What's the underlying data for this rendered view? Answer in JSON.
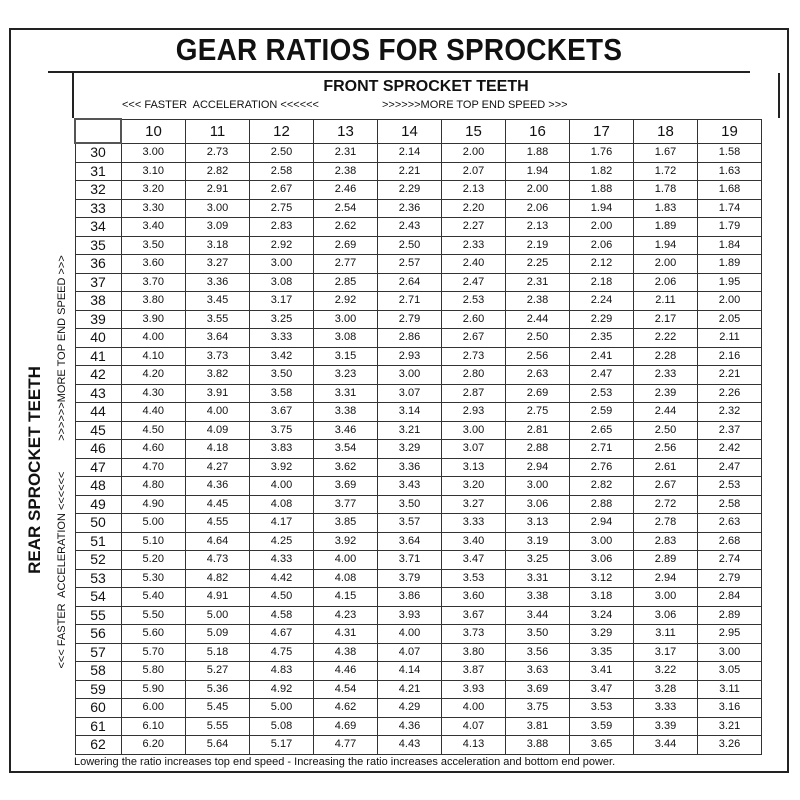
{
  "title": "GEAR RATIOS FOR SPROCKETS",
  "front_header": {
    "title": "FRONT SPROCKET TEETH",
    "left": "<<< FASTER  ACCELERATION <<<<<<",
    "right": ">>>>>>MORE TOP END SPEED >>>"
  },
  "rear_header": {
    "title": "REAR SPROCKET TEETH",
    "left": "<<< FASTER  ACCELERATION <<<<<<",
    "right": ">>>>>>MORE TOP END SPEED >>>"
  },
  "table": {
    "columns": [
      "10",
      "11",
      "12",
      "13",
      "14",
      "15",
      "16",
      "17",
      "18",
      "19"
    ],
    "rows": [
      {
        "label": "30",
        "values": [
          "3.00",
          "2.73",
          "2.50",
          "2.31",
          "2.14",
          "2.00",
          "1.88",
          "1.76",
          "1.67",
          "1.58"
        ]
      },
      {
        "label": "31",
        "values": [
          "3.10",
          "2.82",
          "2.58",
          "2.38",
          "2.21",
          "2.07",
          "1.94",
          "1.82",
          "1.72",
          "1.63"
        ]
      },
      {
        "label": "32",
        "values": [
          "3.20",
          "2.91",
          "2.67",
          "2.46",
          "2.29",
          "2.13",
          "2.00",
          "1.88",
          "1.78",
          "1.68"
        ]
      },
      {
        "label": "33",
        "values": [
          "3.30",
          "3.00",
          "2.75",
          "2.54",
          "2.36",
          "2.20",
          "2.06",
          "1.94",
          "1.83",
          "1.74"
        ]
      },
      {
        "label": "34",
        "values": [
          "3.40",
          "3.09",
          "2.83",
          "2.62",
          "2.43",
          "2.27",
          "2.13",
          "2.00",
          "1.89",
          "1.79"
        ]
      },
      {
        "label": "35",
        "values": [
          "3.50",
          "3.18",
          "2.92",
          "2.69",
          "2.50",
          "2.33",
          "2.19",
          "2.06",
          "1.94",
          "1.84"
        ]
      },
      {
        "label": "36",
        "values": [
          "3.60",
          "3.27",
          "3.00",
          "2.77",
          "2.57",
          "2.40",
          "2.25",
          "2.12",
          "2.00",
          "1.89"
        ]
      },
      {
        "label": "37",
        "values": [
          "3.70",
          "3.36",
          "3.08",
          "2.85",
          "2.64",
          "2.47",
          "2.31",
          "2.18",
          "2.06",
          "1.95"
        ]
      },
      {
        "label": "38",
        "values": [
          "3.80",
          "3.45",
          "3.17",
          "2.92",
          "2.71",
          "2.53",
          "2.38",
          "2.24",
          "2.11",
          "2.00"
        ]
      },
      {
        "label": "39",
        "values": [
          "3.90",
          "3.55",
          "3.25",
          "3.00",
          "2.79",
          "2.60",
          "2.44",
          "2.29",
          "2.17",
          "2.05"
        ]
      },
      {
        "label": "40",
        "values": [
          "4.00",
          "3.64",
          "3.33",
          "3.08",
          "2.86",
          "2.67",
          "2.50",
          "2.35",
          "2.22",
          "2.11"
        ]
      },
      {
        "label": "41",
        "values": [
          "4.10",
          "3.73",
          "3.42",
          "3.15",
          "2.93",
          "2.73",
          "2.56",
          "2.41",
          "2.28",
          "2.16"
        ]
      },
      {
        "label": "42",
        "values": [
          "4.20",
          "3.82",
          "3.50",
          "3.23",
          "3.00",
          "2.80",
          "2.63",
          "2.47",
          "2.33",
          "2.21"
        ]
      },
      {
        "label": "43",
        "values": [
          "4.30",
          "3.91",
          "3.58",
          "3.31",
          "3.07",
          "2.87",
          "2.69",
          "2.53",
          "2.39",
          "2.26"
        ]
      },
      {
        "label": "44",
        "values": [
          "4.40",
          "4.00",
          "3.67",
          "3.38",
          "3.14",
          "2.93",
          "2.75",
          "2.59",
          "2.44",
          "2.32"
        ]
      },
      {
        "label": "45",
        "values": [
          "4.50",
          "4.09",
          "3.75",
          "3.46",
          "3.21",
          "3.00",
          "2.81",
          "2.65",
          "2.50",
          "2.37"
        ]
      },
      {
        "label": "46",
        "values": [
          "4.60",
          "4.18",
          "3.83",
          "3.54",
          "3.29",
          "3.07",
          "2.88",
          "2.71",
          "2.56",
          "2.42"
        ]
      },
      {
        "label": "47",
        "values": [
          "4.70",
          "4.27",
          "3.92",
          "3.62",
          "3.36",
          "3.13",
          "2.94",
          "2.76",
          "2.61",
          "2.47"
        ]
      },
      {
        "label": "48",
        "values": [
          "4.80",
          "4.36",
          "4.00",
          "3.69",
          "3.43",
          "3.20",
          "3.00",
          "2.82",
          "2.67",
          "2.53"
        ]
      },
      {
        "label": "49",
        "values": [
          "4.90",
          "4.45",
          "4.08",
          "3.77",
          "3.50",
          "3.27",
          "3.06",
          "2.88",
          "2.72",
          "2.58"
        ]
      },
      {
        "label": "50",
        "values": [
          "5.00",
          "4.55",
          "4.17",
          "3.85",
          "3.57",
          "3.33",
          "3.13",
          "2.94",
          "2.78",
          "2.63"
        ]
      },
      {
        "label": "51",
        "values": [
          "5.10",
          "4.64",
          "4.25",
          "3.92",
          "3.64",
          "3.40",
          "3.19",
          "3.00",
          "2.83",
          "2.68"
        ]
      },
      {
        "label": "52",
        "values": [
          "5.20",
          "4.73",
          "4.33",
          "4.00",
          "3.71",
          "3.47",
          "3.25",
          "3.06",
          "2.89",
          "2.74"
        ]
      },
      {
        "label": "53",
        "values": [
          "5.30",
          "4.82",
          "4.42",
          "4.08",
          "3.79",
          "3.53",
          "3.31",
          "3.12",
          "2.94",
          "2.79"
        ]
      },
      {
        "label": "54",
        "values": [
          "5.40",
          "4.91",
          "4.50",
          "4.15",
          "3.86",
          "3.60",
          "3.38",
          "3.18",
          "3.00",
          "2.84"
        ]
      },
      {
        "label": "55",
        "values": [
          "5.50",
          "5.00",
          "4.58",
          "4.23",
          "3.93",
          "3.67",
          "3.44",
          "3.24",
          "3.06",
          "2.89"
        ]
      },
      {
        "label": "56",
        "values": [
          "5.60",
          "5.09",
          "4.67",
          "4.31",
          "4.00",
          "3.73",
          "3.50",
          "3.29",
          "3.11",
          "2.95"
        ]
      },
      {
        "label": "57",
        "values": [
          "5.70",
          "5.18",
          "4.75",
          "4.38",
          "4.07",
          "3.80",
          "3.56",
          "3.35",
          "3.17",
          "3.00"
        ]
      },
      {
        "label": "58",
        "values": [
          "5.80",
          "5.27",
          "4.83",
          "4.46",
          "4.14",
          "3.87",
          "3.63",
          "3.41",
          "3.22",
          "3.05"
        ]
      },
      {
        "label": "59",
        "values": [
          "5.90",
          "5.36",
          "4.92",
          "4.54",
          "4.21",
          "3.93",
          "3.69",
          "3.47",
          "3.28",
          "3.11"
        ]
      },
      {
        "label": "60",
        "values": [
          "6.00",
          "5.45",
          "5.00",
          "4.62",
          "4.29",
          "4.00",
          "3.75",
          "3.53",
          "3.33",
          "3.16"
        ]
      },
      {
        "label": "61",
        "values": [
          "6.10",
          "5.55",
          "5.08",
          "4.69",
          "4.36",
          "4.07",
          "3.81",
          "3.59",
          "3.39",
          "3.21"
        ]
      },
      {
        "label": "62",
        "values": [
          "6.20",
          "5.64",
          "5.17",
          "4.77",
          "4.43",
          "4.13",
          "3.88",
          "3.65",
          "3.44",
          "3.26"
        ]
      }
    ]
  },
  "footer": "Lowering the ratio increases top end speed - Increasing the ratio increases acceleration and bottom end power."
}
